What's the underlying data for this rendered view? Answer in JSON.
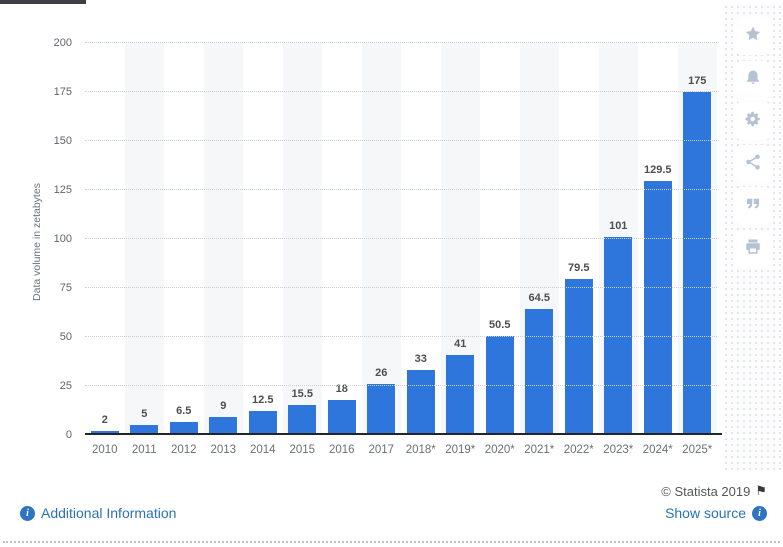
{
  "chart_data": {
    "type": "bar",
    "categories": [
      "2010",
      "2011",
      "2012",
      "2013",
      "2014",
      "2015",
      "2016",
      "2017",
      "2018*",
      "2019*",
      "2020*",
      "2021*",
      "2022*",
      "2023*",
      "2024*",
      "2025*"
    ],
    "values": [
      2,
      5,
      6.5,
      9,
      12.5,
      15.5,
      18,
      26,
      33,
      41,
      50.5,
      64.5,
      79.5,
      101,
      129.5,
      175
    ],
    "title": "",
    "xlabel": "",
    "ylabel": "Data volume in zetabytes",
    "ylim": [
      0,
      200
    ],
    "yticks": [
      0,
      25,
      50,
      75,
      100,
      125,
      150,
      175,
      200
    ],
    "grid": "horizontal dotted gridlines, alternating light vertical column bands",
    "legend": "none",
    "bar_color": "#2F76DC"
  },
  "footer": {
    "copyright": "© Statista 2019",
    "additional_information": "Additional Information",
    "show_source": "Show source"
  },
  "sidebar": {
    "icons": [
      "star-icon",
      "bell-icon",
      "gear-icon",
      "share-icon",
      "quote-icon",
      "printer-icon"
    ]
  },
  "colors": {
    "bar": "#2F76DC",
    "link": "#2B71B8",
    "column_band": "#F6F7F9",
    "gridline": "#C5D1E1",
    "axis": "#23252A",
    "data_label": "#4E4E4E",
    "tick_label": "#5D6470"
  }
}
